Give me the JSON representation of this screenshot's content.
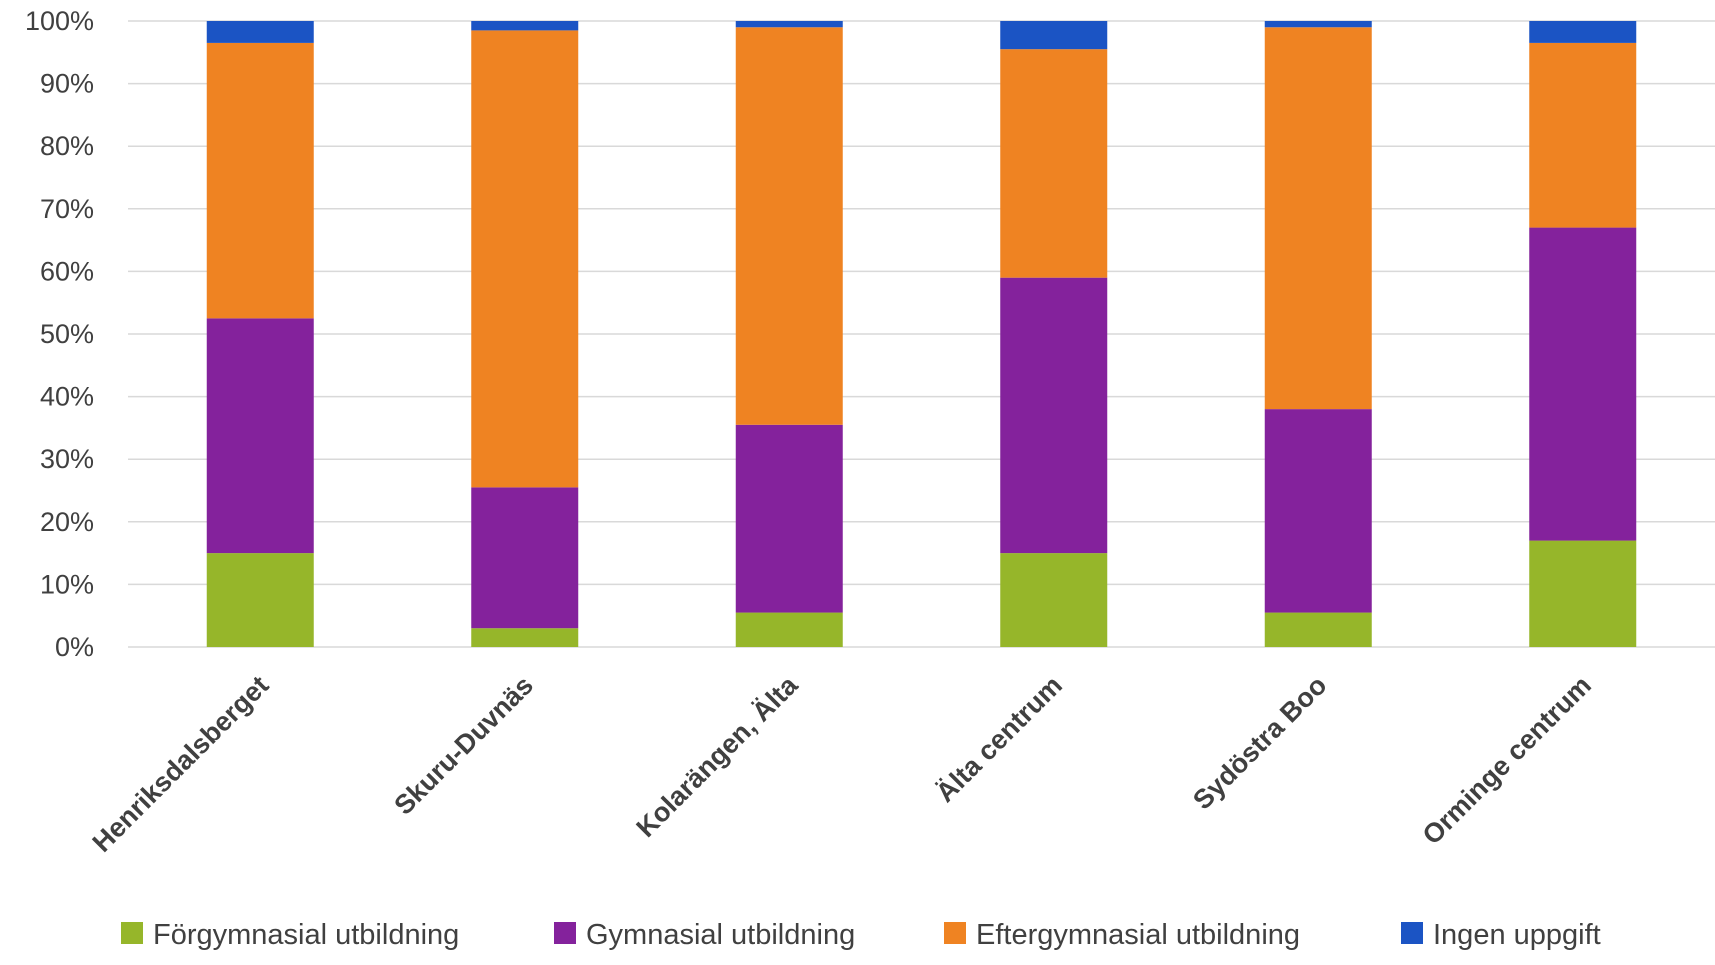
{
  "chart_data": {
    "type": "bar",
    "stacked": true,
    "categories": [
      "Henriksdalsberget",
      "Skuru-Duvnäs",
      "Kolarängen, Älta",
      "Älta centrum",
      "Sydöstra Boo",
      "Orminge centrum"
    ],
    "series": [
      {
        "name": "Förgymnasial utbildning",
        "color": "#96b62a",
        "values": [
          15,
          3,
          5.5,
          15,
          5.5,
          17
        ]
      },
      {
        "name": "Gymnasial utbildning",
        "color": "#84229c",
        "values": [
          37.5,
          22.5,
          30,
          44,
          32.5,
          50
        ]
      },
      {
        "name": "Eftergymnasial utbildning",
        "color": "#ef8322",
        "values": [
          44,
          73,
          63.5,
          36.5,
          61,
          29.5
        ]
      },
      {
        "name": "Ingen uppgift",
        "color": "#1b54c4",
        "values": [
          3.5,
          1.5,
          1,
          4.5,
          1,
          3.5
        ]
      }
    ],
    "yticks": [
      "0%",
      "10%",
      "20%",
      "30%",
      "40%",
      "50%",
      "60%",
      "70%",
      "80%",
      "90%",
      "100%"
    ],
    "ylim": [
      0,
      100
    ],
    "title": "",
    "xlabel": "",
    "ylabel": "",
    "grid": true,
    "legend_position": "bottom"
  }
}
